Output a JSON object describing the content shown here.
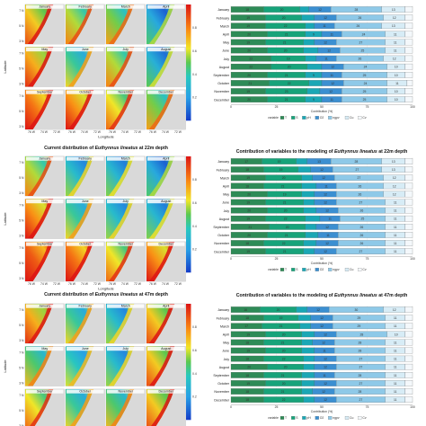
{
  "months": [
    "January",
    "February",
    "March",
    "April",
    "May",
    "June",
    "July",
    "August",
    "September",
    "October",
    "November",
    "December"
  ],
  "maps": {
    "latitude_label": "Latitude",
    "longitude_label": "Longitude",
    "colorbar_ticks": [
      "0.8",
      "0.6",
      "0.4",
      "0.2"
    ],
    "panels": [
      {
        "title_pre": "",
        "species": "",
        "title_post": "",
        "grid": [
          [
            0.55,
            0.45,
            0.4,
            0.12
          ],
          [
            0.6,
            0.3,
            0.45,
            0.15
          ],
          [
            0.7,
            0.65,
            0.5,
            0.4
          ]
        ]
      },
      {
        "title_pre": "Current distribution of ",
        "species": "Euthynnus lineatus",
        "title_post": " at 22m depth",
        "grid": [
          [
            0.45,
            0.2,
            0.18,
            0.12
          ],
          [
            0.65,
            0.3,
            0.2,
            0.18
          ],
          [
            0.75,
            0.7,
            0.5,
            0.65
          ]
        ]
      },
      {
        "title_pre": "Current distribution of ",
        "species": "Euthynnus lineatus",
        "title_post": " at 47m depth",
        "grid": [
          [
            0.6,
            0.3,
            0.2,
            0.55
          ],
          [
            0.35,
            0.25,
            0.2,
            0.55
          ],
          [
            0.5,
            0.3,
            0.35,
            0.55
          ]
        ]
      }
    ]
  },
  "chart_data": [
    {
      "type": "bar",
      "title": "",
      "orientation": "horizontal-stacked",
      "categories": [
        "January",
        "February",
        "March",
        "April",
        "May",
        "June",
        "July",
        "August",
        "September",
        "October",
        "November",
        "December"
      ],
      "xlabel": "Contribution (%)",
      "xlim": [
        0,
        100
      ],
      "xticks": [
        "0",
        "25",
        "50",
        "75",
        "100"
      ],
      "legend_title": "variable",
      "legend_placement": "bottom",
      "series": [
        {
          "name": "T",
          "color": "#2e8b57",
          "values": [
            18,
            19,
            19,
            20,
            19,
            20,
            22,
            22,
            20,
            21,
            19,
            20
          ]
        },
        {
          "name": "S",
          "color": "#17a37a",
          "values": [
            20,
            20,
            22,
            21,
            21,
            20,
            19,
            20,
            21,
            22,
            23,
            21
          ]
        },
        {
          "name": "pH",
          "color": "#1aa7b5",
          "values": [
            5,
            7,
            5,
            9,
            6,
            8,
            6,
            8,
            9,
            7,
            7,
            9
          ]
        },
        {
          "name": "O2",
          "color": "#3b8fd1",
          "values": [
            12,
            12,
            11,
            11,
            12,
            12,
            11,
            12,
            11,
            12,
            12,
            11
          ]
        },
        {
          "name": "ngpv",
          "color": "#8ec9e8",
          "values": [
            28,
            26,
            26,
            24,
            27,
            25,
            26,
            24,
            25,
            24,
            25,
            25
          ]
        },
        {
          "name": "Cu",
          "color": "#d7ecf6",
          "values": [
            13,
            12,
            13,
            11,
            11,
            11,
            12,
            10,
            10,
            11,
            10,
            10
          ]
        },
        {
          "name": "Cv",
          "color": "#f4f8fb",
          "values": [
            4,
            4,
            4,
            4,
            4,
            4,
            4,
            4,
            4,
            3,
            4,
            4
          ]
        }
      ]
    },
    {
      "type": "bar",
      "title_pre": "Contribution of variables to the modeling of ",
      "species": "Euthynnus lineatus",
      "title_post": " at 22m depth",
      "orientation": "horizontal-stacked",
      "categories": [
        "January",
        "February",
        "March",
        "April",
        "May",
        "June",
        "July",
        "August",
        "September",
        "October",
        "November",
        "December"
      ],
      "xlabel": "Contribution (%)",
      "xlim": [
        0,
        100
      ],
      "xticks": [
        "0",
        "25",
        "50",
        "75",
        "100"
      ],
      "legend_title": "variable",
      "legend_placement": "bottom",
      "series": [
        {
          "name": "T",
          "color": "#2e8b57",
          "values": [
            17,
            18,
            19,
            18,
            20,
            19,
            20,
            19,
            21,
            20,
            18,
            19
          ]
        },
        {
          "name": "S",
          "color": "#17a37a",
          "values": [
            19,
            19,
            20,
            21,
            19,
            21,
            20,
            22,
            20,
            21,
            22,
            21
          ]
        },
        {
          "name": "pH",
          "color": "#1aa7b5",
          "values": [
            6,
            7,
            6,
            8,
            7,
            6,
            7,
            8,
            6,
            7,
            7,
            6
          ]
        },
        {
          "name": "O2",
          "color": "#3b8fd1",
          "values": [
            13,
            12,
            12,
            11,
            12,
            12,
            12,
            11,
            12,
            11,
            12,
            12
          ]
        },
        {
          "name": "ngpv",
          "color": "#8ec9e8",
          "values": [
            28,
            27,
            27,
            26,
            26,
            27,
            26,
            25,
            26,
            26,
            26,
            27
          ]
        },
        {
          "name": "Cu",
          "color": "#d7ecf6",
          "values": [
            13,
            13,
            12,
            12,
            12,
            11,
            11,
            11,
            11,
            11,
            11,
            11
          ]
        },
        {
          "name": "Cv",
          "color": "#f4f8fb",
          "values": [
            4,
            4,
            4,
            4,
            4,
            4,
            4,
            4,
            4,
            4,
            4,
            4
          ]
        }
      ]
    },
    {
      "type": "bar",
      "title_pre": "Contribution of variables to the modeling of ",
      "species": "Euthynnus lineatus",
      "title_post": " at 47m depth",
      "orientation": "horizontal-stacked",
      "categories": [
        "January",
        "February",
        "March",
        "April",
        "May",
        "June",
        "July",
        "August",
        "September",
        "October",
        "November",
        "December"
      ],
      "xlabel": "Contribution (%)",
      "xlim": [
        0,
        100
      ],
      "xticks": [
        "0",
        "25",
        "50",
        "75",
        "100"
      ],
      "legend_title": "variable",
      "legend_placement": "bottom",
      "series": [
        {
          "name": "T",
          "color": "#2e8b57",
          "values": [
            16,
            18,
            17,
            19,
            18,
            19,
            18,
            20,
            18,
            19,
            18,
            18
          ]
        },
        {
          "name": "S",
          "color": "#17a37a",
          "values": [
            20,
            19,
            21,
            20,
            21,
            20,
            22,
            20,
            21,
            20,
            21,
            22
          ]
        },
        {
          "name": "pH",
          "color": "#1aa7b5",
          "values": [
            6,
            7,
            6,
            7,
            6,
            7,
            6,
            6,
            7,
            7,
            6,
            6
          ]
        },
        {
          "name": "O2",
          "color": "#3b8fd1",
          "values": [
            12,
            12,
            12,
            12,
            12,
            11,
            12,
            12,
            11,
            12,
            12,
            12
          ]
        },
        {
          "name": "ngpv",
          "color": "#8ec9e8",
          "values": [
            30,
            29,
            29,
            28,
            28,
            28,
            27,
            27,
            28,
            27,
            28,
            27
          ]
        },
        {
          "name": "Cu",
          "color": "#d7ecf6",
          "values": [
            12,
            11,
            11,
            10,
            11,
            11,
            11,
            11,
            11,
            11,
            11,
            11
          ]
        },
        {
          "name": "Cv",
          "color": "#f4f8fb",
          "values": [
            4,
            4,
            4,
            4,
            4,
            4,
            4,
            4,
            4,
            4,
            4,
            4
          ]
        }
      ]
    }
  ]
}
